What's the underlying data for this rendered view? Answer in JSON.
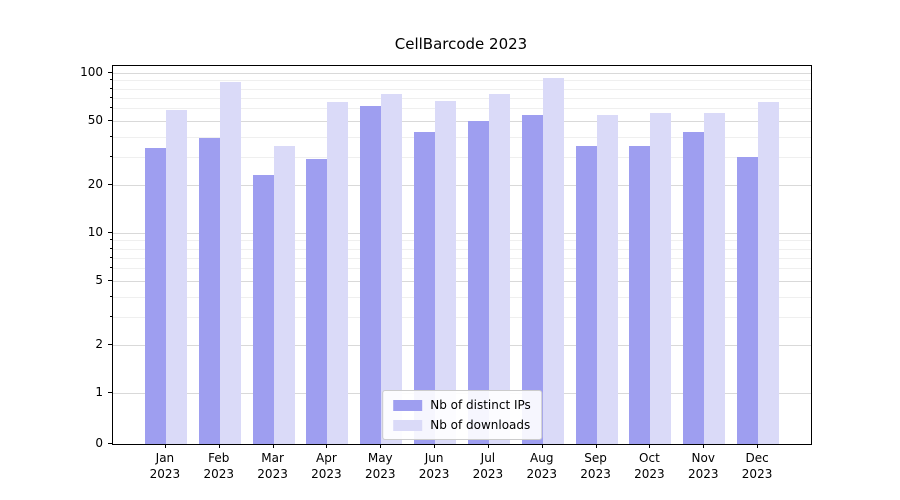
{
  "chart_data": {
    "type": "bar",
    "title": "CellBarcode 2023",
    "x_tick_months": [
      "Jan",
      "Feb",
      "Mar",
      "Apr",
      "May",
      "Jun",
      "Jul",
      "Aug",
      "Sep",
      "Oct",
      "Nov",
      "Dec"
    ],
    "x_tick_year": "2023",
    "series": [
      {
        "name": "Nb of distinct IPs",
        "color": "#9e9ef0",
        "values": [
          34,
          39,
          23,
          29,
          62,
          43,
          50,
          55,
          35,
          35,
          43,
          30
        ]
      },
      {
        "name": "Nb of downloads",
        "color": "#dadaf8",
        "values": [
          59,
          88,
          35,
          66,
          74,
          67,
          74,
          93,
          55,
          56,
          56,
          66
        ]
      }
    ],
    "yscale": "symlog",
    "y_ticks": [
      0,
      1,
      2,
      5,
      10,
      20,
      50,
      100
    ],
    "y_minor_ticks": [
      3,
      4,
      6,
      7,
      8,
      9,
      30,
      40,
      60,
      70,
      80,
      90
    ],
    "ylim": [
      0,
      110
    ],
    "grid": true,
    "legend_position": "lower center",
    "axis_color": "#000000",
    "grid_major_color": "#d9d9d9",
    "grid_minor_color": "#efefef"
  }
}
